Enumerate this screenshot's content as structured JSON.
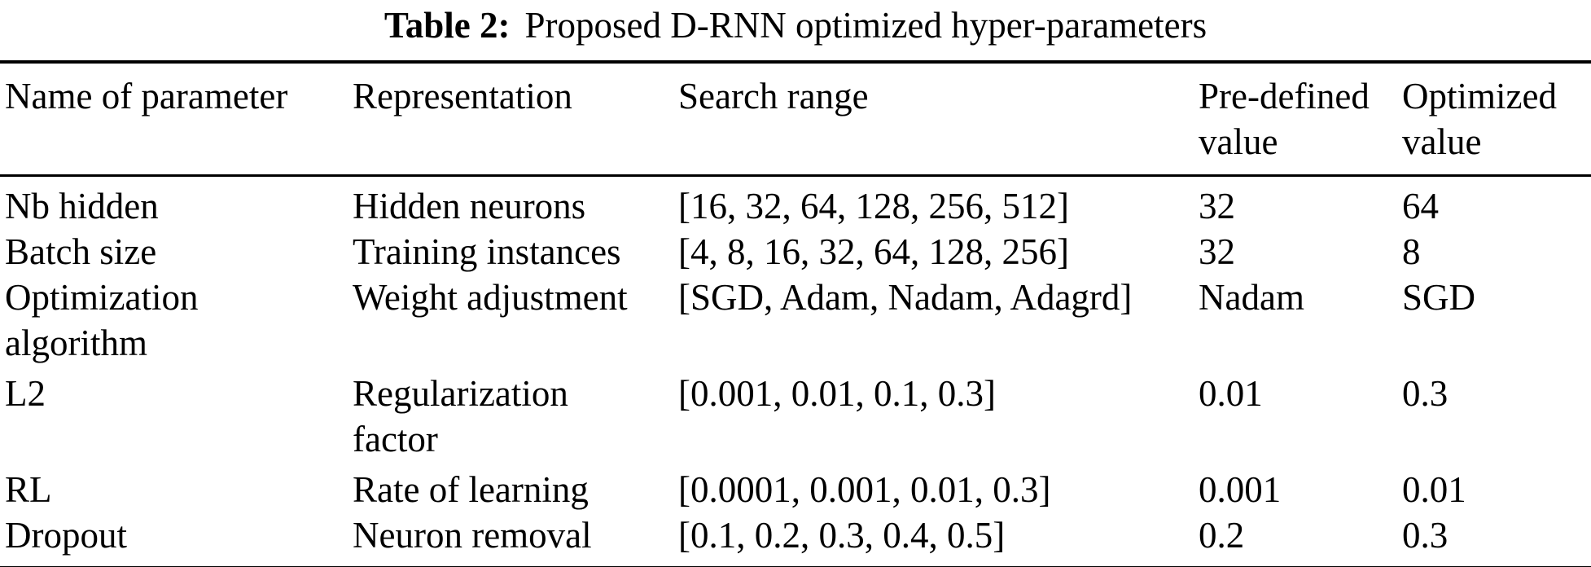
{
  "caption": {
    "label": "Table 2:",
    "text": "Proposed D-RNN optimized hyper-parameters"
  },
  "table": {
    "columns": [
      {
        "label": "Name of parameter"
      },
      {
        "label": "Representation"
      },
      {
        "label": "Search range"
      },
      {
        "label": "Pre-defined value"
      },
      {
        "label": "Optimized value"
      }
    ],
    "rows": [
      {
        "name": "Nb hidden",
        "representation": "Hidden neurons",
        "search_range": "[16, 32, 64, 128, 256, 512]",
        "predefined": "32",
        "optimized": "64"
      },
      {
        "name": "Batch size",
        "representation": "Training instances",
        "search_range": "[4, 8, 16, 32, 64, 128, 256]",
        "predefined": "32",
        "optimized": "8"
      },
      {
        "name": "Optimization algorithm",
        "representation": "Weight adjustment",
        "search_range": "[SGD, Adam, Nadam, Adagrd]",
        "predefined": "Nadam",
        "optimized": "SGD"
      },
      {
        "name": "L2",
        "representation": "Regularization factor",
        "search_range": "[0.001, 0.01, 0.1, 0.3]",
        "predefined": "0.01",
        "optimized": "0.3"
      },
      {
        "name": "RL",
        "representation": "Rate of learning",
        "search_range": "[0.0001, 0.001, 0.01, 0.3]",
        "predefined": "0.001",
        "optimized": "0.01"
      },
      {
        "name": "Dropout",
        "representation": "Neuron removal",
        "search_range": "[0.1, 0.2, 0.3, 0.4, 0.5]",
        "predefined": "0.2",
        "optimized": "0.3"
      }
    ]
  },
  "colors": {
    "text": "#000000",
    "background": "#ffffff",
    "rule": "#000000"
  }
}
